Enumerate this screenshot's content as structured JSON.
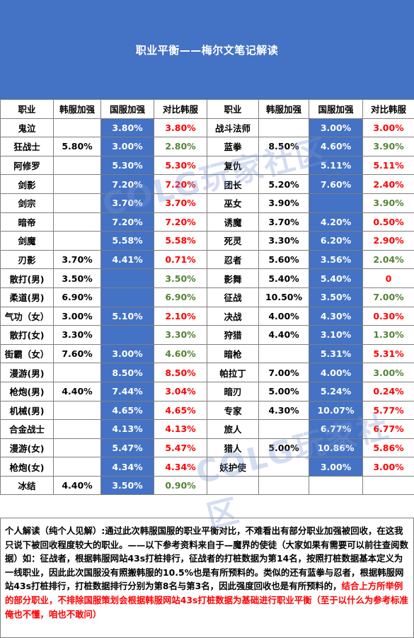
{
  "title": "职业平衡——梅尔文笔记解读",
  "headers": [
    "职业",
    "韩服加强",
    "国服加强",
    "对比韩服",
    "职业",
    "韩服加强",
    "国服加强",
    "对比韩服"
  ],
  "rows": [
    {
      "l": {
        "job": "鬼泣",
        "kr": "",
        "cn": "3.80%",
        "cmp": "3.80%",
        "cmpColor": "red"
      },
      "r": {
        "job": "战斗法师",
        "kr": "",
        "cn": "3.00%",
        "cmp": "3.00%",
        "cmpColor": "red"
      }
    },
    {
      "l": {
        "job": "狂战士",
        "kr": "5.80%",
        "cn": "3.00%",
        "cmp": "2.80%",
        "cmpColor": "green"
      },
      "r": {
        "job": "蓝拳",
        "kr": "8.50%",
        "cn": "4.60%",
        "cmp": "3.90%",
        "cmpColor": "green"
      }
    },
    {
      "l": {
        "job": "阿修罗",
        "kr": "",
        "cn": "5.30%",
        "cmp": "5.30%",
        "cmpColor": "red"
      },
      "r": {
        "job": "复仇",
        "kr": "",
        "cn": "5.11%",
        "cmp": "5.11%",
        "cmpColor": "red"
      }
    },
    {
      "l": {
        "job": "剑影",
        "kr": "",
        "cn": "7.20%",
        "cmp": "7.20%",
        "cmpColor": "red"
      },
      "r": {
        "job": "团长",
        "kr": "5.20%",
        "cn": "7.60%",
        "cmp": "2.40%",
        "cmpColor": "red"
      }
    },
    {
      "l": {
        "job": "剑宗",
        "kr": "",
        "cn": "3.70%",
        "cmp": "3.70%",
        "cmpColor": "red"
      },
      "r": {
        "job": "巫女",
        "kr": "3.90%",
        "cn": "",
        "cmp": "3.90%",
        "cmpColor": "green"
      }
    },
    {
      "l": {
        "job": "暗帝",
        "kr": "",
        "cn": "7.20%",
        "cmp": "7.20%",
        "cmpColor": "red"
      },
      "r": {
        "job": "诱魔",
        "kr": "3.70%",
        "cn": "4.20%",
        "cmp": "0.50%",
        "cmpColor": "red"
      }
    },
    {
      "l": {
        "job": "剑魔",
        "kr": "",
        "cn": "5.58%",
        "cmp": "5.58%",
        "cmpColor": "red"
      },
      "r": {
        "job": "死灵",
        "kr": "3.30%",
        "cn": "6.20%",
        "cmp": "2.90%",
        "cmpColor": "red"
      }
    },
    {
      "l": {
        "job": "刃影",
        "kr": "3.70%",
        "cn": "4.41%",
        "cmp": "0.71%",
        "cmpColor": "red"
      },
      "r": {
        "job": "忍者",
        "kr": "5.60%",
        "cn": "3.56%",
        "cmp": "2.04%",
        "cmpColor": "green"
      }
    },
    {
      "l": {
        "job": "散打(男)",
        "kr": "3.50%",
        "cn": "",
        "cmp": "3.50%",
        "cmpColor": "green"
      },
      "r": {
        "job": "影舞",
        "kr": "5.40%",
        "cn": "5.40%",
        "cmp": "0",
        "cmpColor": "red"
      }
    },
    {
      "l": {
        "job": "柔道(男)",
        "kr": "6.90%",
        "cn": "",
        "cmp": "6.90%",
        "cmpColor": "green"
      },
      "r": {
        "job": "征战",
        "kr": "10.50%",
        "cn": "3.50%",
        "cmp": "7.00%",
        "cmpColor": "green"
      }
    },
    {
      "l": {
        "job": "气功（女）",
        "kr": "3.00%",
        "cn": "5.10%",
        "cmp": "2.10%",
        "cmpColor": "red"
      },
      "r": {
        "job": "决战",
        "kr": "4.00%",
        "cn": "4.30%",
        "cmp": "0.30%",
        "cmpColor": "red"
      }
    },
    {
      "l": {
        "job": "散打(女)",
        "kr": "3.30%",
        "cn": "",
        "cmp": "3.30%",
        "cmpColor": "green"
      },
      "r": {
        "job": "狩猎",
        "kr": "4.40%",
        "cn": "3.10%",
        "cmp": "1.30%",
        "cmpColor": "green"
      }
    },
    {
      "l": {
        "job": "街霸（女）",
        "kr": "7.60%",
        "cn": "3.00%",
        "cmp": "4.60%",
        "cmpColor": "green"
      },
      "r": {
        "job": "暗枪",
        "kr": "",
        "cn": "5.31%",
        "cmp": "5.31%",
        "cmpColor": "red"
      }
    },
    {
      "l": {
        "job": "漫游(男)",
        "kr": "",
        "cn": "8.50%",
        "cmp": "8.50%",
        "cmpColor": "red"
      },
      "r": {
        "job": "帕拉丁",
        "kr": "7.00%",
        "cn": "4.00%",
        "cmp": "3.00%",
        "cmpColor": "green"
      }
    },
    {
      "l": {
        "job": "枪炮(男)",
        "kr": "4.40%",
        "cn": "7.44%",
        "cmp": "3.04%",
        "cmpColor": "red"
      },
      "r": {
        "job": "暗刃",
        "kr": "5.00%",
        "cn": "5.24%",
        "cmp": "0.24%",
        "cmpColor": "red"
      }
    },
    {
      "l": {
        "job": "机械(男)",
        "kr": "",
        "cn": "4.65%",
        "cmp": "4.65%",
        "cmpColor": "red"
      },
      "r": {
        "job": "专家",
        "kr": "4.30%",
        "cn": "10.07%",
        "cmp": "5.77%",
        "cmpColor": "red"
      }
    },
    {
      "l": {
        "job": "合金战士",
        "kr": "",
        "cn": "4.13%",
        "cmp": "4.13%",
        "cmpColor": "red"
      },
      "r": {
        "job": "旅人",
        "kr": "",
        "cn": "6.77%",
        "cmp": "6.77%",
        "cmpColor": "red"
      }
    },
    {
      "l": {
        "job": "漫游(女)",
        "kr": "",
        "cn": "5.47%",
        "cmp": "5.47%",
        "cmpColor": "red"
      },
      "r": {
        "job": "猎人",
        "kr": "5.00%",
        "cn": "10.86%",
        "cmp": "5.86%",
        "cmpColor": "red"
      }
    },
    {
      "l": {
        "job": "枪炮(女)",
        "kr": "",
        "cn": "4.34%",
        "cmp": "4.34%",
        "cmpColor": "red"
      },
      "r": {
        "job": "妖护使",
        "kr": "",
        "cn": "3.00%",
        "cmp": "3.00%",
        "cmpColor": "red"
      }
    },
    {
      "l": {
        "job": "冰结",
        "kr": "4.40%",
        "cn": "3.50%",
        "cmp": "0.90%",
        "cmpColor": "green"
      },
      "r": null
    }
  ],
  "note": {
    "text": "个人解读（纯个人见解）:通过此次韩服国服的职业平衡对比，不难看出有部分职业加强被回收，在这我只说下被回收程度较大的职业。——以下参考资料来自于—魔界的使徒（大家如果有需要可以前往查阅数据）如：征战者，根据韩服网站43s打桩排行，征战者的打桩数据为第14名，按照打桩数据基本定义为一线职业，因此此次国服没有照搬韩服的10.5%也是有所预料的。类似的还有蓝拳与忍者，根据韩服网站43s打桩排行，打桩数据排行分别为第8名与第3名，因此强度回收也是有所预料的，",
    "highlight": "结合上方所举例的部分职业，不排除国服策划会根据韩服网站43s打桩数据为基础进行职业平衡（至于以什么为参考标准俺也不懂，咱也不敢问）"
  },
  "watermark": [
    "COLG玩家社区",
    "COLG玩家社区"
  ],
  "colors": {
    "header_bg": "#4472c4",
    "blue_cell": "#4472c4",
    "red": "#ff0000",
    "green": "#548235"
  }
}
